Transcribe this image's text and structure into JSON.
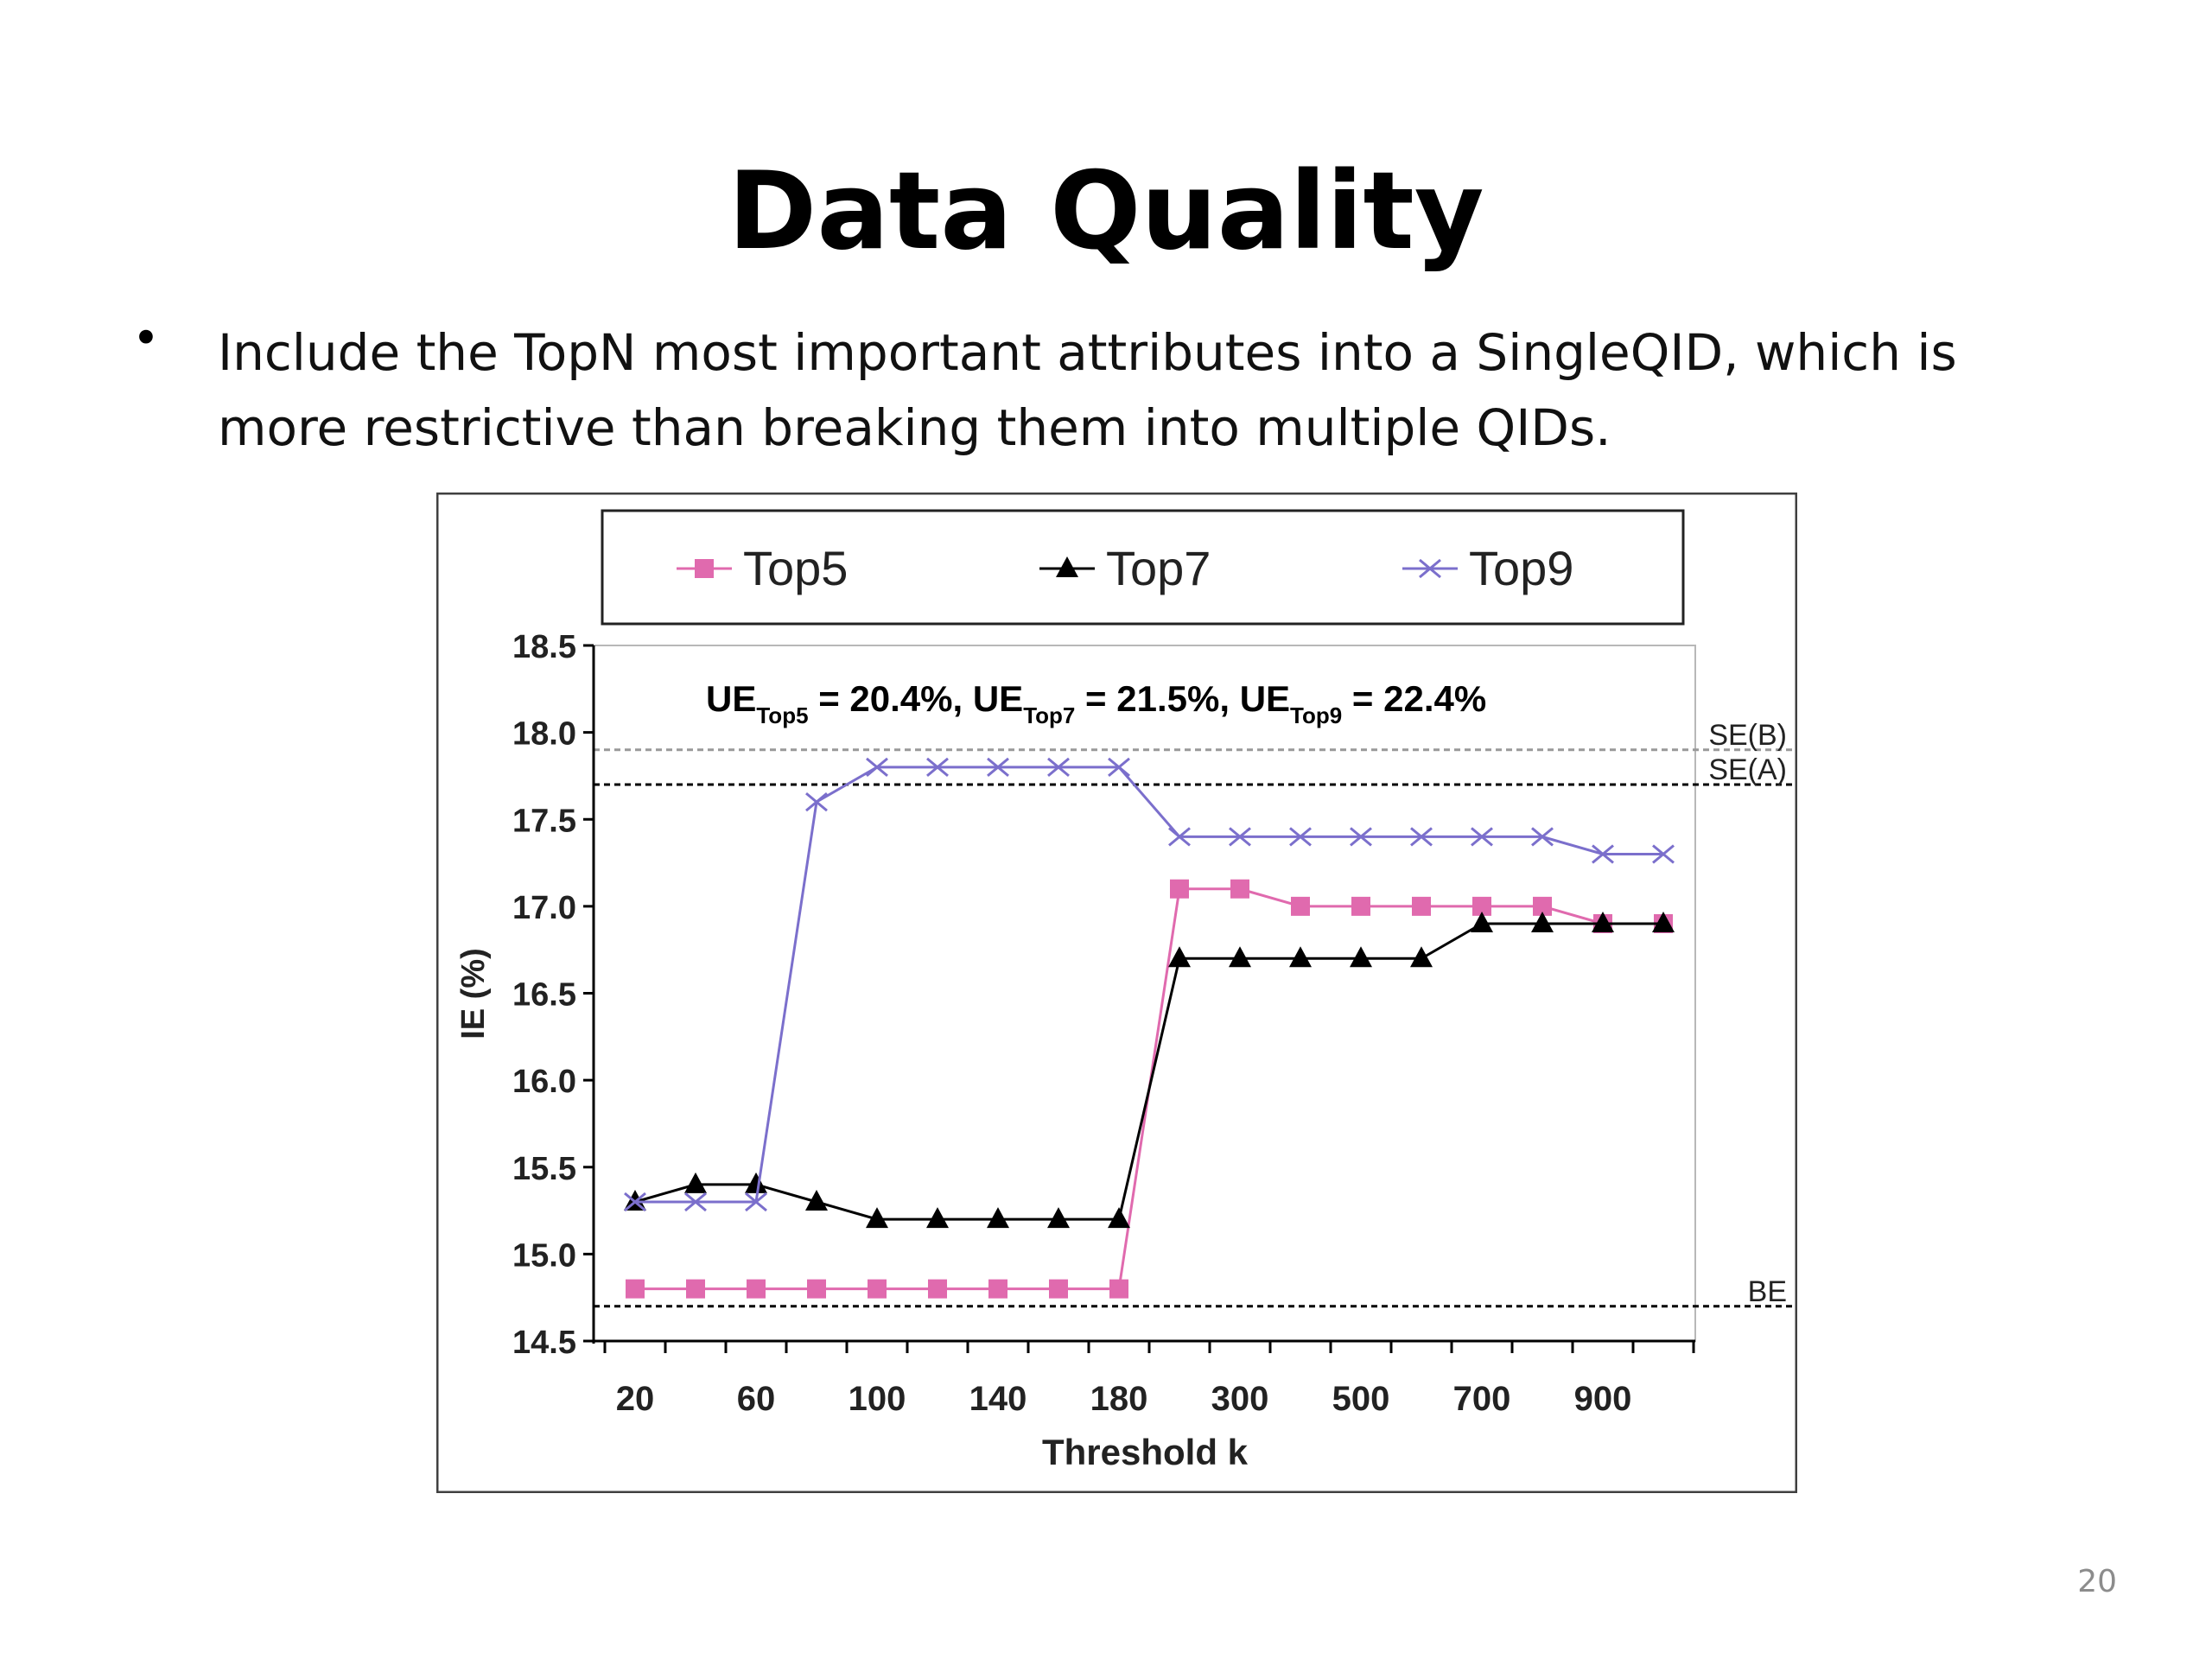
{
  "slide": {
    "title": "Data Quality",
    "bullet_marker": "•",
    "bullet_text": "Include the TopN most important attributes into a SingleQID, which is more restrictive than breaking them into multiple QIDs.",
    "page_number": "20"
  },
  "chart_data": {
    "type": "line",
    "title": "",
    "xlabel": "Threshold k",
    "ylabel": "IE (%)",
    "ylim": [
      14.5,
      18.5
    ],
    "y_ticks": [
      "18.5",
      "18.0",
      "17.5",
      "17.0",
      "16.5",
      "16.0",
      "15.5",
      "15.0",
      "14.5"
    ],
    "x": [
      20,
      40,
      60,
      80,
      100,
      120,
      140,
      160,
      180,
      200,
      300,
      400,
      500,
      600,
      700,
      800,
      900,
      1000
    ],
    "x_tick_labels": [
      "20",
      "60",
      "100",
      "140",
      "180",
      "300",
      "500",
      "700",
      "900"
    ],
    "legend": {
      "position": "top",
      "frame": true
    },
    "annotation": {
      "ue": "UE",
      "parts": [
        {
          "sub": "Top5",
          "value": " = 20.4%, "
        },
        {
          "sub": "Top7",
          "value": " = 21.5%, "
        },
        {
          "sub": "Top9",
          "value": " = 22.4%"
        }
      ]
    },
    "reference_lines": [
      {
        "label": "SE(B)",
        "value": 17.9,
        "color": "#999999"
      },
      {
        "label": "SE(A)",
        "value": 17.7,
        "color": "#000000"
      },
      {
        "label": "BE",
        "value": 14.7,
        "color": "#000000"
      }
    ],
    "series": [
      {
        "name": "Top5",
        "color": "#e06aae",
        "marker": "square",
        "values": [
          14.8,
          14.8,
          14.8,
          14.8,
          14.8,
          14.8,
          14.8,
          14.8,
          14.8,
          17.1,
          17.1,
          17.0,
          17.0,
          17.0,
          17.0,
          17.0,
          16.9,
          16.9
        ]
      },
      {
        "name": "Top7",
        "color": "#000000",
        "marker": "triangle",
        "values": [
          15.3,
          15.4,
          15.4,
          15.3,
          15.2,
          15.2,
          15.2,
          15.2,
          15.2,
          16.7,
          16.7,
          16.7,
          16.7,
          16.7,
          16.9,
          16.9,
          16.9,
          16.9
        ]
      },
      {
        "name": "Top9",
        "color": "#7b6fcc",
        "marker": "x",
        "values": [
          15.3,
          15.3,
          15.3,
          17.6,
          17.8,
          17.8,
          17.8,
          17.8,
          17.8,
          17.4,
          17.4,
          17.4,
          17.4,
          17.4,
          17.4,
          17.4,
          17.3,
          17.3
        ]
      }
    ]
  }
}
